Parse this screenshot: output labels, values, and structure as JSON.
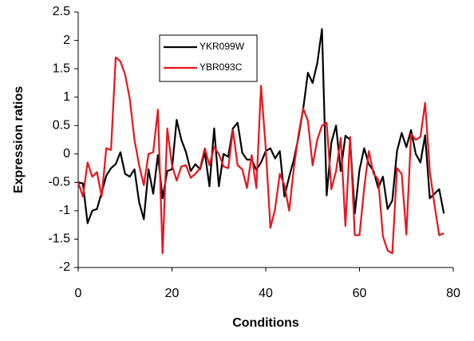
{
  "chart_data": {
    "type": "line",
    "x_label": "Conditions",
    "y_label": "Expression ratios",
    "x": [
      0,
      1,
      2,
      3,
      4,
      5,
      6,
      7,
      8,
      9,
      10,
      11,
      12,
      13,
      14,
      15,
      16,
      17,
      18,
      19,
      20,
      21,
      22,
      23,
      24,
      25,
      26,
      27,
      28,
      29,
      30,
      31,
      32,
      33,
      34,
      35,
      36,
      37,
      38,
      39,
      40,
      41,
      42,
      43,
      44,
      45,
      46,
      47,
      48,
      49,
      50,
      51,
      52,
      53,
      54,
      55,
      56,
      57,
      58,
      59,
      60,
      61,
      62,
      63,
      64,
      65,
      66,
      67,
      68,
      69,
      70,
      71,
      72,
      73,
      74,
      75,
      76,
      77,
      78
    ],
    "series": [
      {
        "name": "YKR099W",
        "color": "#000000",
        "values": [
          -0.5,
          -0.52,
          -1.22,
          -1.0,
          -0.97,
          -0.68,
          -0.38,
          -0.25,
          -0.18,
          0.03,
          -0.35,
          -0.4,
          -0.27,
          -0.85,
          -1.15,
          -0.27,
          -0.7,
          -0.02,
          -0.78,
          -0.3,
          -0.27,
          0.6,
          0.25,
          0.03,
          -0.3,
          -0.18,
          -0.27,
          0.03,
          -0.57,
          0.45,
          -0.57,
          0.0,
          -0.05,
          0.45,
          0.55,
          0.02,
          -0.1,
          -0.1,
          -0.28,
          -0.15,
          0.05,
          0.1,
          -0.08,
          0.05,
          -0.75,
          -0.4,
          -0.1,
          0.3,
          0.8,
          1.43,
          1.25,
          1.6,
          2.2,
          -0.73,
          0.2,
          0.5,
          -0.3,
          0.32,
          0.25,
          -1.05,
          -0.28,
          0.1,
          -0.18,
          -0.3,
          -0.6,
          -0.4,
          -0.97,
          -0.82,
          0.05,
          0.37,
          0.12,
          0.42,
          0.0,
          -0.15,
          0.33,
          -0.78,
          -0.7,
          -0.62,
          -1.05
        ]
      },
      {
        "name": "YBR093C",
        "color": "#e8141c",
        "values": [
          -0.5,
          -0.75,
          -0.15,
          -0.4,
          -0.32,
          -0.75,
          0.1,
          0.07,
          1.7,
          1.63,
          1.4,
          0.97,
          0.25,
          -0.2,
          -0.55,
          0.0,
          0.03,
          0.78,
          -1.75,
          0.45,
          -0.2,
          -0.47,
          -0.22,
          -0.2,
          -0.42,
          -0.35,
          -0.25,
          0.1,
          -0.2,
          0.12,
          0.0,
          -0.22,
          -0.25,
          0.42,
          -0.2,
          -0.27,
          -0.6,
          -0.02,
          -0.6,
          1.2,
          0.1,
          -1.3,
          -0.97,
          -0.35,
          -0.55,
          -1.0,
          -0.25,
          0.35,
          0.8,
          0.58,
          -0.2,
          0.25,
          0.5,
          0.55,
          -0.62,
          -0.3,
          0.28,
          -1.27,
          0.3,
          -1.43,
          -1.43,
          -0.6,
          0.05,
          -0.35,
          -0.45,
          -1.45,
          -1.7,
          -1.75,
          -0.25,
          -0.35,
          -1.42,
          0.35,
          0.25,
          0.3,
          0.9,
          -0.3,
          -0.9,
          -1.43,
          -1.4
        ]
      }
    ],
    "xlim": [
      0,
      80
    ],
    "xticks": [
      0,
      20,
      40,
      60,
      80
    ],
    "ylim": [
      -2,
      2.5
    ],
    "yticks": [
      2.5,
      2,
      1.5,
      1,
      0.5,
      0,
      -0.5,
      -1,
      -1.5,
      -2
    ]
  }
}
